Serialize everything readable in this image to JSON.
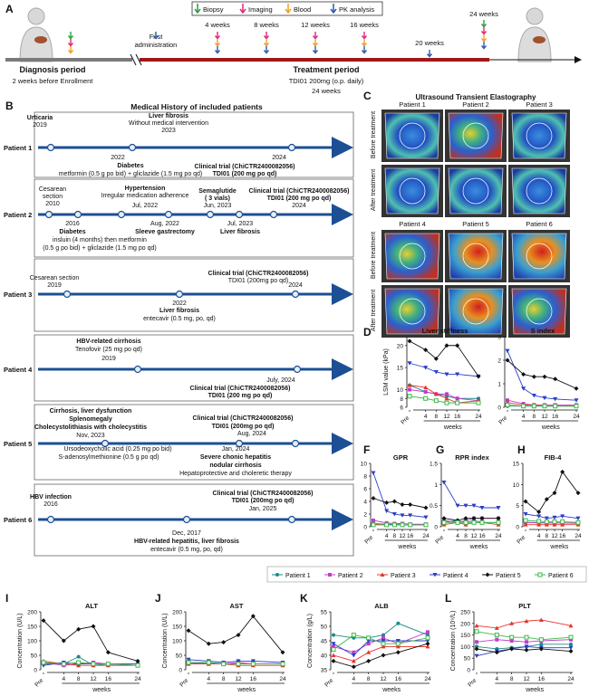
{
  "panel_letters": [
    "A",
    "B",
    "C",
    "D",
    "E",
    "F",
    "G",
    "H",
    "I",
    "J",
    "K",
    "L"
  ],
  "panelA": {
    "legend": [
      {
        "label": "Biopsy",
        "color": "#2e9e3e"
      },
      {
        "label": "Imaging",
        "color": "#e0287a"
      },
      {
        "label": "Blood",
        "color": "#f0a020"
      },
      {
        "label": "PK analysis",
        "color": "#2a5db0"
      }
    ],
    "first_admin": "First administration",
    "weeks": [
      "4 weeks",
      "8 weeks",
      "12 weeks",
      "16 weeks",
      "20 weeks",
      "24 weeks"
    ],
    "diagnosis_title": "Diagnosis period",
    "diagnosis_sub": "2 weeks before Enrollment",
    "treatment_title": "Treatment period",
    "treatment_sub1": "TDI01 200mg  (o.p. daily)",
    "treatment_sub2": "24 weeks"
  },
  "panelB": {
    "title": "Medical History of included patients",
    "patients": [
      {
        "name": "Patient 1",
        "lines": [
          "Urticaria",
          "2019",
          "Liver fibrosis",
          "Without medical intervention",
          "2023",
          "2022",
          "2024",
          "Diabetes",
          "metformin (0.5 g po bid) + gliclazide (1.5 mg po qd)",
          "Clinical trial (ChiCTR2400082056)",
          "TDI01 (200 mg po qd)"
        ]
      },
      {
        "name": "Patient 2",
        "lines": [
          "Hypertension",
          "Irregular medication adherence",
          "Cesarean",
          "section",
          "2010",
          "Jul, 2022",
          "Semaglutide",
          "( 3 vials)",
          "Jun, 2023",
          "Clinical trial (ChiCTR2400082056)",
          "TDI01 (200 mg po qd)",
          "2024",
          "2016",
          "Aug, 2022",
          "Jul, 2023",
          "Diabetes",
          "Sleeve gastrectomy",
          "Liver fibrosis",
          "insluin (4 months) then metformin",
          "(0.5 g po bid) + gliclazide (1.5 mg po qd)"
        ]
      },
      {
        "name": "Patient 3",
        "lines": [
          "Clinical trial (ChiCTR2400082056)",
          "TDI01 (200mg po qd)",
          "Cesarean section",
          "2019",
          "2024",
          "2022",
          "Liver fibrosis",
          "entecavir (0.5 mg, po, qd)"
        ]
      },
      {
        "name": "Patient 4",
        "lines": [
          "HBV-related cirrhosis",
          "Tenofovir (25 mg po qd)",
          "2019",
          "July, 2024",
          "Clinical trial (ChiCTR2400082056)",
          "TDI01 (200 mg po qd)"
        ]
      },
      {
        "name": "Patient 5",
        "lines": [
          "Cirrhosis, liver dysfunction",
          "Splenomegaly",
          "Cholecystolithiasis with cholecystitis",
          "Nov, 2023",
          "Clinical trial (ChiCTR2400082056)",
          "TDI01 (200mg po qd)",
          "Aug, 2024",
          "Ursodeoxycholic acid (0.25 mg po bid)",
          "S-adenosylmethionine (0.5 g po qd)",
          "Jan, 2024",
          "Severe chonic hepatitis",
          "nodular cirrhosis",
          "Hepatoprotective and choleretic therapy"
        ]
      },
      {
        "name": "Patient 6",
        "lines": [
          "HBV infection",
          "2016",
          "Clinical trial (ChiCTR2400082056)",
          "TDI01 (200mg po qd)",
          "Jan, 2025",
          "Dec, 2017",
          "HBV-related hepatitis, liver fibrosis",
          "entecavir (0.5 mg, po, qd)"
        ]
      }
    ]
  },
  "panelC": {
    "title": "Ultrasound Transient Elastography",
    "patients_row1": [
      "Patient 1",
      "Patient 2",
      "Patient 3"
    ],
    "patients_row2": [
      "Patient 4",
      "Patient 5",
      "Patient 6"
    ],
    "row_before": "Before treatment",
    "row_after": "After treatment"
  },
  "legend": {
    "series": [
      {
        "name": "Patient 1",
        "color": "#1a8a8a",
        "marker": "circle"
      },
      {
        "name": "Patient 2",
        "color": "#c03ec8",
        "marker": "square"
      },
      {
        "name": "Patient 3",
        "color": "#e8332a",
        "marker": "triangle"
      },
      {
        "name": "Patient 4",
        "color": "#2a3ec8",
        "marker": "tri-down"
      },
      {
        "name": "Patient 5",
        "color": "#111111",
        "marker": "diamond"
      },
      {
        "name": "Patient 6",
        "color": "#3ab84a",
        "marker": "square-open"
      }
    ]
  },
  "chart_data": [
    {
      "id": "D",
      "type": "line",
      "title": "Liver stiffness",
      "ylabel": "LSM value (kPa)",
      "xlabel": "weeks",
      "x": [
        "Pre",
        "4",
        "8",
        "12",
        "16",
        "24"
      ],
      "ylim": [
        6,
        22
      ],
      "yticks": [
        6,
        8,
        10,
        15,
        20
      ],
      "series": [
        {
          "name": "Patient 1",
          "values": [
            11,
            9.5,
            9,
            8.5,
            8,
            8
          ]
        },
        {
          "name": "Patient 2",
          "values": [
            10,
            9.5,
            9,
            9,
            8,
            7.5
          ]
        },
        {
          "name": "Patient 3",
          "values": [
            11,
            10.5,
            9,
            8,
            7,
            7.5
          ]
        },
        {
          "name": "Patient 4",
          "values": [
            16,
            15,
            14,
            13.5,
            13.5,
            13
          ]
        },
        {
          "name": "Patient 5",
          "values": [
            21,
            19,
            17,
            20,
            20,
            13
          ]
        },
        {
          "name": "Patient 6",
          "values": [
            8.5,
            8,
            7.5,
            7,
            7,
            7
          ]
        }
      ]
    },
    {
      "id": "E",
      "type": "line",
      "title": "S index",
      "xlabel": "weeks",
      "x": [
        "Pre",
        "4",
        "8",
        "12",
        "16",
        "24"
      ],
      "ylim": [
        0,
        3
      ],
      "yticks": [
        0,
        1,
        2,
        3
      ],
      "series": [
        {
          "name": "Patient 1",
          "values": [
            0.05,
            0.05,
            0.05,
            0.05,
            0.05,
            0.05
          ]
        },
        {
          "name": "Patient 2",
          "values": [
            0.3,
            0.15,
            0.1,
            0.1,
            0.1,
            0.1
          ]
        },
        {
          "name": "Patient 3",
          "values": [
            0.2,
            0.1,
            0.1,
            0.05,
            0.05,
            0.05
          ]
        },
        {
          "name": "Patient 4",
          "values": [
            2.4,
            0.8,
            0.5,
            0.4,
            0.35,
            0.3
          ]
        },
        {
          "name": "Patient 5",
          "values": [
            2.0,
            1.4,
            1.3,
            1.3,
            1.2,
            0.8
          ]
        },
        {
          "name": "Patient 6",
          "values": [
            0.1,
            0.05,
            0.05,
            0.05,
            0.05,
            0.05
          ]
        }
      ]
    },
    {
      "id": "F",
      "type": "line",
      "title": "GPR",
      "xlabel": "weeks",
      "x": [
        "Pre",
        "4",
        "8",
        "12",
        "16",
        "24"
      ],
      "ylim": [
        0,
        10
      ],
      "yticks": [
        0,
        2,
        4,
        6,
        8,
        10
      ],
      "series": [
        {
          "name": "Patient 1",
          "values": [
            0.5,
            0.4,
            0.4,
            0.3,
            0.3,
            0.3
          ]
        },
        {
          "name": "Patient 2",
          "values": [
            1.0,
            0.6,
            0.5,
            0.5,
            0.4,
            0.4
          ]
        },
        {
          "name": "Patient 3",
          "values": [
            0.4,
            0.3,
            0.3,
            0.3,
            0.3,
            0.3
          ]
        },
        {
          "name": "Patient 4",
          "values": [
            8.5,
            2.5,
            2.0,
            1.8,
            1.8,
            1.5
          ]
        },
        {
          "name": "Patient 5",
          "values": [
            4.5,
            3.8,
            4.0,
            3.5,
            3.5,
            3.0
          ]
        },
        {
          "name": "Patient 6",
          "values": [
            0.3,
            0.3,
            0.3,
            0.3,
            0.3,
            0.3
          ]
        }
      ]
    },
    {
      "id": "G",
      "type": "line",
      "title": "RPR index",
      "xlabel": "weeks",
      "x": [
        "Pre",
        "4",
        "8",
        "12",
        "16",
        "24"
      ],
      "ylim": [
        0,
        1.5
      ],
      "yticks": [
        0,
        0.5,
        1,
        1.5
      ],
      "series": [
        {
          "name": "Patient 1",
          "values": [
            0.1,
            0.15,
            0.1,
            0.15,
            0.1,
            0.1
          ]
        },
        {
          "name": "Patient 2",
          "values": [
            0.15,
            0.1,
            0.15,
            0.2,
            0.2,
            0.2
          ]
        },
        {
          "name": "Patient 3",
          "values": [
            0.05,
            0.1,
            0.05,
            0.1,
            0.1,
            0.05
          ]
        },
        {
          "name": "Patient 4",
          "values": [
            1.05,
            0.5,
            0.5,
            0.5,
            0.45,
            0.45
          ]
        },
        {
          "name": "Patient 5",
          "values": [
            0.2,
            0.15,
            0.2,
            0.2,
            0.2,
            0.2
          ]
        },
        {
          "name": "Patient 6",
          "values": [
            0.1,
            0.1,
            0.1,
            0.1,
            0.1,
            0.1
          ]
        }
      ]
    },
    {
      "id": "H",
      "type": "line",
      "title": "FIB-4",
      "xlabel": "weeks",
      "x": [
        "Pre",
        "4",
        "8",
        "12",
        "16",
        "24"
      ],
      "ylim": [
        0,
        15
      ],
      "yticks": [
        0,
        5,
        10,
        15
      ],
      "series": [
        {
          "name": "Patient 1",
          "values": [
            1.0,
            1.0,
            0.9,
            0.9,
            0.9,
            0.8
          ]
        },
        {
          "name": "Patient 2",
          "values": [
            1.0,
            0.9,
            0.9,
            0.9,
            0.9,
            0.9
          ]
        },
        {
          "name": "Patient 3",
          "values": [
            0.5,
            0.5,
            0.5,
            0.5,
            0.5,
            0.5
          ]
        },
        {
          "name": "Patient 4",
          "values": [
            3.0,
            2.5,
            2.0,
            2.2,
            2.5,
            2.0
          ]
        },
        {
          "name": "Patient 5",
          "values": [
            6.0,
            3.5,
            6.5,
            8.0,
            13.0,
            8.0
          ]
        },
        {
          "name": "Patient 6",
          "values": [
            1.5,
            1.3,
            1.2,
            1.2,
            1.2,
            1.0
          ]
        }
      ]
    },
    {
      "id": "I",
      "type": "line",
      "title": "ALT",
      "ylabel": "Concentration (U/L)",
      "xlabel": "weeks",
      "x": [
        "Pre",
        "4",
        "8",
        "12",
        "16",
        "24"
      ],
      "ylim": [
        0,
        200
      ],
      "yticks": [
        0,
        50,
        100,
        150,
        200
      ],
      "series": [
        {
          "name": "Patient 1",
          "values": [
            20,
            20,
            45,
            15,
            20,
            15
          ]
        },
        {
          "name": "Patient 2",
          "values": [
            25,
            15,
            20,
            25,
            20,
            15
          ]
        },
        {
          "name": "Patient 3",
          "values": [
            30,
            20,
            15,
            15,
            15,
            15
          ]
        },
        {
          "name": "Patient 4",
          "values": [
            15,
            25,
            20,
            20,
            20,
            20
          ]
        },
        {
          "name": "Patient 5",
          "values": [
            170,
            100,
            140,
            150,
            60,
            30
          ]
        },
        {
          "name": "Patient 6",
          "values": [
            25,
            20,
            25,
            20,
            20,
            15
          ]
        }
      ]
    },
    {
      "id": "J",
      "type": "line",
      "title": "AST",
      "ylabel": "Concentration (U/L)",
      "xlabel": "weeks",
      "x": [
        "Pre",
        "4",
        "8",
        "12",
        "16",
        "24"
      ],
      "ylim": [
        0,
        200
      ],
      "yticks": [
        0,
        50,
        100,
        150,
        200
      ],
      "series": [
        {
          "name": "Patient 1",
          "values": [
            20,
            25,
            20,
            20,
            20,
            20
          ]
        },
        {
          "name": "Patient 2",
          "values": [
            25,
            20,
            20,
            25,
            20,
            20
          ]
        },
        {
          "name": "Patient 3",
          "values": [
            20,
            20,
            20,
            15,
            15,
            15
          ]
        },
        {
          "name": "Patient 4",
          "values": [
            35,
            30,
            25,
            30,
            30,
            25
          ]
        },
        {
          "name": "Patient 5",
          "values": [
            135,
            90,
            95,
            120,
            185,
            60
          ]
        },
        {
          "name": "Patient 6",
          "values": [
            25,
            25,
            20,
            20,
            20,
            20
          ]
        }
      ]
    },
    {
      "id": "K",
      "type": "line",
      "title": "ALB",
      "ylabel": "Concentration (g/L)",
      "xlabel": "weeks",
      "x": [
        "Pre",
        "4",
        "8",
        "12",
        "16",
        "24"
      ],
      "ylim": [
        35,
        55
      ],
      "yticks": [
        35,
        40,
        45,
        50,
        55
      ],
      "series": [
        {
          "name": "Patient 1",
          "values": [
            47,
            46,
            46,
            47,
            51,
            47
          ]
        },
        {
          "name": "Patient 2",
          "values": [
            43,
            41,
            44,
            46,
            44,
            48
          ]
        },
        {
          "name": "Patient 3",
          "values": [
            40,
            38,
            41,
            43,
            43,
            43
          ]
        },
        {
          "name": "Patient 4",
          "values": [
            44,
            40,
            45,
            45,
            45,
            45
          ]
        },
        {
          "name": "Patient 5",
          "values": [
            38,
            36,
            38,
            40,
            41,
            44
          ]
        },
        {
          "name": "Patient 6",
          "values": [
            42,
            47,
            46,
            44,
            44,
            46
          ]
        }
      ]
    },
    {
      "id": "L",
      "type": "line",
      "title": "PLT",
      "ylabel": "Concentration (10⁹/L)",
      "xlabel": "weeks",
      "x": [
        "Pre",
        "4",
        "8",
        "12",
        "16",
        "24"
      ],
      "ylim": [
        0,
        250
      ],
      "yticks": [
        0,
        50,
        100,
        150,
        200,
        250
      ],
      "series": [
        {
          "name": "Patient 1",
          "values": [
            100,
            90,
            95,
            100,
            110,
            110
          ]
        },
        {
          "name": "Patient 2",
          "values": [
            120,
            130,
            125,
            120,
            125,
            130
          ]
        },
        {
          "name": "Patient 3",
          "values": [
            190,
            180,
            200,
            210,
            215,
            190
          ]
        },
        {
          "name": "Patient 4",
          "values": [
            60,
            80,
            90,
            100,
            95,
            95
          ]
        },
        {
          "name": "Patient 5",
          "values": [
            90,
            75,
            90,
            85,
            90,
            80
          ]
        },
        {
          "name": "Patient 6",
          "values": [
            165,
            150,
            140,
            140,
            130,
            140
          ]
        }
      ]
    }
  ]
}
